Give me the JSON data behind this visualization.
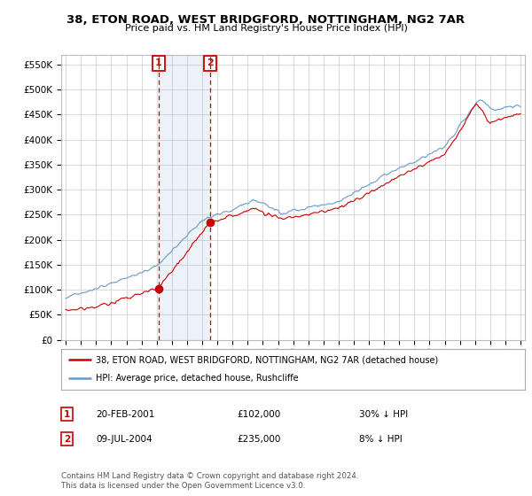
{
  "title": "38, ETON ROAD, WEST BRIDGFORD, NOTTINGHAM, NG2 7AR",
  "subtitle": "Price paid vs. HM Land Registry's House Price Index (HPI)",
  "legend_line1": "38, ETON ROAD, WEST BRIDGFORD, NOTTINGHAM, NG2 7AR (detached house)",
  "legend_line2": "HPI: Average price, detached house, Rushcliffe",
  "sale1_date": "20-FEB-2001",
  "sale1_price": "£102,000",
  "sale1_hpi": "30% ↓ HPI",
  "sale2_date": "09-JUL-2004",
  "sale2_price": "£235,000",
  "sale2_hpi": "8% ↓ HPI",
  "footer": "Contains HM Land Registry data © Crown copyright and database right 2024.\nThis data is licensed under the Open Government Licence v3.0.",
  "sale1_x": 2001.13,
  "sale1_y": 102000,
  "sale2_x": 2004.52,
  "sale2_y": 235000,
  "sale_color": "#cc0000",
  "hpi_color": "#6699cc",
  "background_color": "#ffffff",
  "grid_color": "#cccccc",
  "ylim": [
    0,
    570000
  ],
  "xlim": [
    1994.7,
    2025.3
  ],
  "yticks": [
    0,
    50000,
    100000,
    150000,
    200000,
    250000,
    300000,
    350000,
    400000,
    450000,
    500000,
    550000
  ]
}
